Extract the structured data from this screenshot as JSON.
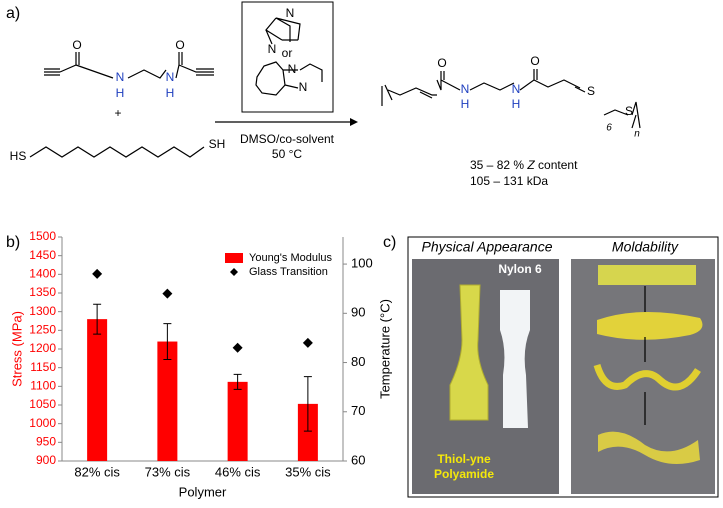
{
  "panel_labels": [
    "a)",
    "b)",
    "c)"
  ],
  "scheme": {
    "monomer_atoms": [
      "O",
      "N",
      "H",
      "N",
      "H",
      "O"
    ],
    "plus": "+",
    "dithiol_atoms": [
      "HS",
      "SH"
    ],
    "dabco_atoms": [
      "N",
      "N"
    ],
    "or": "or",
    "dbu_atoms": [
      "N",
      "N"
    ],
    "conditions": [
      "DMSO/co-solvent",
      "50 °C"
    ],
    "product_atoms": [
      "O",
      "N",
      "H",
      "N",
      "H",
      "O",
      "S",
      "S",
      "6",
      "n"
    ],
    "z_content": [
      "35 – 82 % ",
      "Z",
      " content"
    ],
    "molar_mass": "105 – 131 kDa"
  },
  "chart_data": {
    "type": "bar",
    "categories": [
      "82% cis",
      "73% cis",
      "46% cis",
      "35% cis"
    ],
    "x_label": "Polymer",
    "y_label": "Stress (MPa)",
    "y2_label": "Temperature (°C)",
    "ylim": [
      900,
      1500
    ],
    "yticks": [
      900,
      950,
      1000,
      1050,
      1100,
      1150,
      1200,
      1250,
      1300,
      1350,
      1400,
      1450,
      1500
    ],
    "y2lim": [
      60,
      105.5
    ],
    "y2ticks": [
      60,
      70,
      80,
      90,
      100
    ],
    "legend": "top-right",
    "series": [
      {
        "name": "Young's Modulus",
        "type": "bar",
        "color": "#ff0000",
        "values": [
          1280,
          1220,
          1112,
          1053
        ],
        "errors": [
          40,
          48,
          20,
          73
        ]
      },
      {
        "name": "Glass Transition",
        "type": "scatter",
        "color": "#000000",
        "axis": "y2",
        "values": [
          98,
          94,
          83,
          84
        ]
      }
    ]
  },
  "photos": {
    "titles": [
      "Physical Appearance",
      "Moldability"
    ],
    "nylon": "Nylon 6",
    "polyamide": [
      "Thiol-yne",
      "Polyamide"
    ]
  }
}
